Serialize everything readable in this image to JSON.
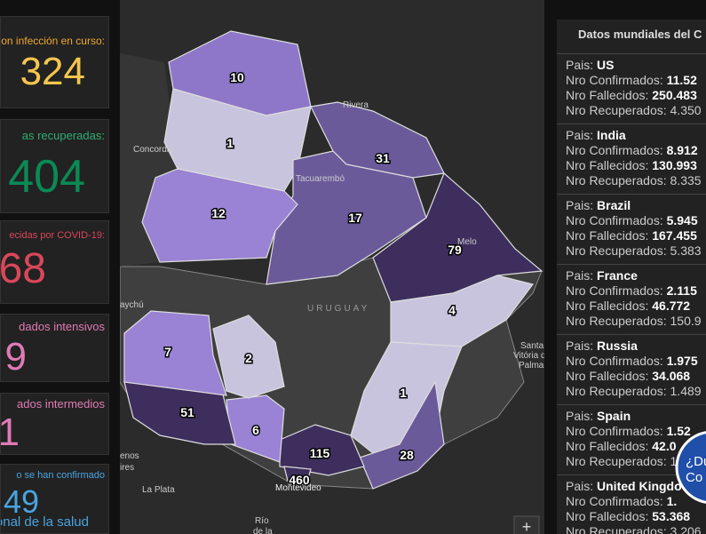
{
  "left_cards": [
    {
      "label": "on infección en curso:",
      "value": "324"
    },
    {
      "label": "as recuperadas:",
      "value": "404"
    },
    {
      "label": "ecidas por COVID-19:",
      "value": "68"
    },
    {
      "label": "dados intensivos",
      "value": "9"
    },
    {
      "label": "ados intermedios",
      "value": "1"
    },
    {
      "label": "o se han confirmado",
      "value": "49",
      "footer": "onal de la salud"
    }
  ],
  "map": {
    "departments": [
      "10",
      "1",
      "31",
      "17",
      "12",
      "79",
      "4",
      "1",
      "28",
      "115",
      "460",
      "6",
      "51",
      "7",
      "2"
    ],
    "places": [
      "Concordia",
      "Rivera",
      "Tacuarembó",
      "Melo",
      "URUGUAY",
      "aychú",
      "Santa",
      "Vitória do",
      "Palmar",
      "enos",
      "ires",
      "La Plata",
      "Montevideo",
      "Río",
      "de la"
    ],
    "zoom": "+"
  },
  "world": {
    "title": "Datos mundiales del C",
    "field_country": "Pais:",
    "field_confirmed": "Nro Confirmados:",
    "field_deaths": "Nro Fallecidos:",
    "field_recovered": "Nro Recuperados:",
    "rows": [
      {
        "country": "US",
        "confirmed": "11.52",
        "deaths": "250.483",
        "recovered": "4.350"
      },
      {
        "country": "India",
        "confirmed": "8.912",
        "deaths": "130.993",
        "recovered": "8.335"
      },
      {
        "country": "Brazil",
        "confirmed": "5.945",
        "deaths": "167.455",
        "recovered": "5.383"
      },
      {
        "country": "France",
        "confirmed": "2.115",
        "deaths": "46.772",
        "recovered": "150.9"
      },
      {
        "country": "Russia",
        "confirmed": "1.975",
        "deaths": "34.068",
        "recovered": "1.489"
      },
      {
        "country": "Spain",
        "confirmed": "1.52",
        "deaths": "42.0",
        "recovered": "1"
      },
      {
        "country": "United Kingdo",
        "confirmed": "1.",
        "deaths": "53.368",
        "recovered": "3.206"
      }
    ]
  },
  "help": [
    "¿Du",
    "Co"
  ]
}
